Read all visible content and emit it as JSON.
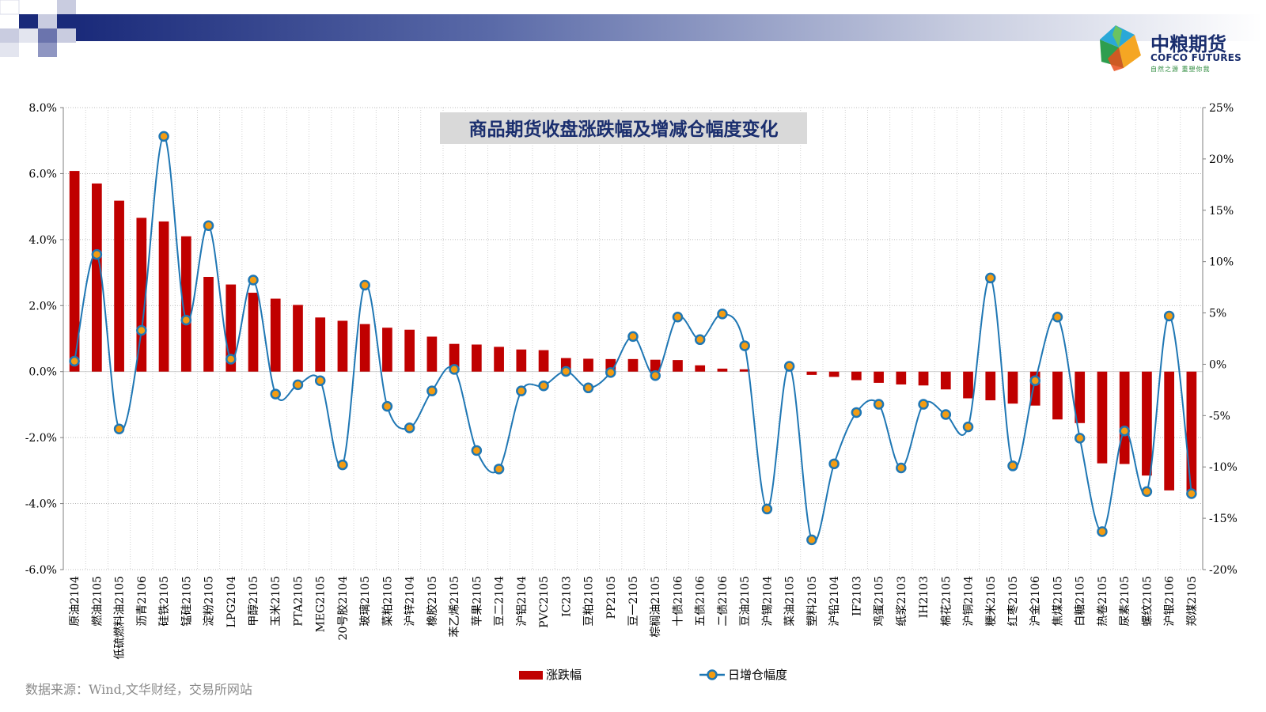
{
  "logo": {
    "name_cn": "中粮期货",
    "name_en": "COFCO FUTURES",
    "slogan": "自然之源 重塑你我"
  },
  "source": "数据来源：Wind,文华财经，交易所网站",
  "colors": {
    "bar": "#c00000",
    "line": "#1f77b4",
    "marker_fill": "#f39c12",
    "header_dark": "#1a2a7a"
  },
  "chart_data": {
    "type": "bar",
    "title": "商品期货收盘涨跌幅及增减仓幅度变化",
    "legend_position": "bottom",
    "grid": true,
    "y_left": {
      "ylim": [
        -6,
        8
      ],
      "ticks": [
        "8.0%",
        "6.0%",
        "4.0%",
        "2.0%",
        "0.0%",
        "-2.0%",
        "-4.0%",
        "-6.0%"
      ],
      "tick_values": [
        8,
        6,
        4,
        2,
        0,
        -2,
        -4,
        -6
      ]
    },
    "y_right": {
      "ylim": [
        -20,
        25
      ],
      "ticks": [
        "25%",
        "20%",
        "15%",
        "10%",
        "5%",
        "0%",
        "-5%",
        "-10%",
        "-15%",
        "-20%"
      ],
      "tick_values": [
        25,
        20,
        15,
        10,
        5,
        0,
        -5,
        -10,
        -15,
        -20
      ]
    },
    "categories": [
      "原油2104",
      "燃油2105",
      "低硫燃料油2105",
      "沥青2106",
      "硅铁2105",
      "锰硅2105",
      "淀粉2105",
      "LPG2104",
      "甲醇2105",
      "玉米2105",
      "PTA2105",
      "MEG2105",
      "20号胶2104",
      "玻璃2105",
      "菜粕2105",
      "沪锌2104",
      "橡胶2105",
      "苯乙烯2105",
      "苹果2105",
      "豆二2104",
      "沪铝2104",
      "PVC2105",
      "IC2103",
      "豆粕2105",
      "PP2105",
      "豆一2105",
      "棕榈油2105",
      "十债2106",
      "五债2106",
      "二债2106",
      "豆油2105",
      "沪锡2104",
      "菜油2105",
      "塑料2105",
      "沪铅2104",
      "IF2103",
      "鸡蛋2105",
      "纸浆2103",
      "IH2103",
      "棉花2105",
      "沪铜2104",
      "粳米2105",
      "红枣2105",
      "沪金2106",
      "焦煤2105",
      "白糖2105",
      "热卷2105",
      "尿素2105",
      "螺纹2105",
      "沪银2106",
      "郑煤2105"
    ],
    "series": [
      {
        "name": "涨跌幅",
        "type": "bar",
        "axis": "left",
        "values": [
          6.08,
          5.7,
          5.18,
          4.66,
          4.55,
          4.1,
          2.87,
          2.64,
          2.39,
          2.21,
          2.02,
          1.64,
          1.54,
          1.44,
          1.33,
          1.27,
          1.06,
          0.84,
          0.82,
          0.75,
          0.67,
          0.65,
          0.41,
          0.39,
          0.38,
          0.38,
          0.36,
          0.35,
          0.19,
          0.09,
          0.07,
          0.0,
          0.0,
          -0.1,
          -0.16,
          -0.26,
          -0.34,
          -0.39,
          -0.42,
          -0.54,
          -0.81,
          -0.87,
          -0.97,
          -1.03,
          -1.45,
          -1.56,
          -2.78,
          -2.8,
          -3.15,
          -3.6,
          -3.65
        ]
      },
      {
        "name": "日增仓幅度",
        "type": "line",
        "axis": "right",
        "values": [
          0.3,
          10.7,
          -6.3,
          3.3,
          22.2,
          4.3,
          13.5,
          0.5,
          8.2,
          -2.9,
          -2.0,
          -1.6,
          -9.8,
          7.7,
          -4.1,
          -6.2,
          -2.6,
          -0.5,
          -8.4,
          -10.2,
          -2.6,
          -2.1,
          -0.7,
          -2.3,
          -0.8,
          2.7,
          -1.1,
          4.6,
          2.4,
          4.9,
          1.8,
          -14.1,
          -0.2,
          -17.1,
          -9.7,
          -4.7,
          -3.9,
          -10.1,
          -3.9,
          -4.9,
          -6.1,
          8.4,
          -9.9,
          -1.6,
          4.6,
          -7.2,
          -16.3,
          -6.5,
          -12.4,
          4.7,
          -12.6
        ]
      }
    ]
  }
}
